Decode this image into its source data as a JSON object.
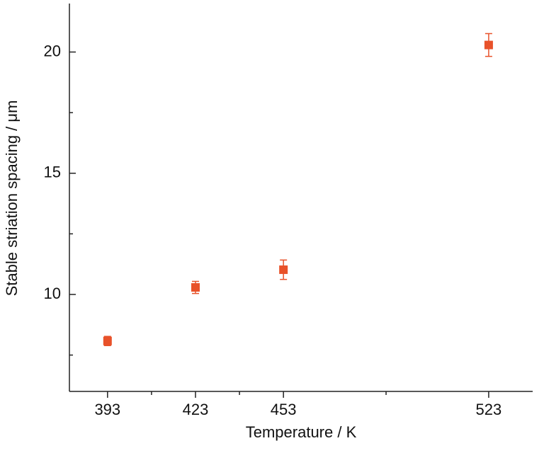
{
  "chart_data": {
    "type": "scatter",
    "x_label": "Temperature / K",
    "y_label": "Stable striation spacing / μm",
    "x": [
      393,
      423,
      453,
      523
    ],
    "values": [
      8.08,
      10.29,
      11.02,
      20.29
    ],
    "errors": [
      0.19,
      0.25,
      0.4,
      0.47
    ],
    "color": "#e8522a",
    "xlim": [
      380,
      538
    ],
    "xticks": [
      393,
      423,
      453,
      523
    ],
    "xminorticks": [
      408,
      438,
      488
    ],
    "ylim": [
      6,
      22
    ],
    "yticks": [
      10,
      15,
      20
    ],
    "yminorticks": [
      7.5,
      12.5,
      17.5
    ],
    "grid": false
  }
}
